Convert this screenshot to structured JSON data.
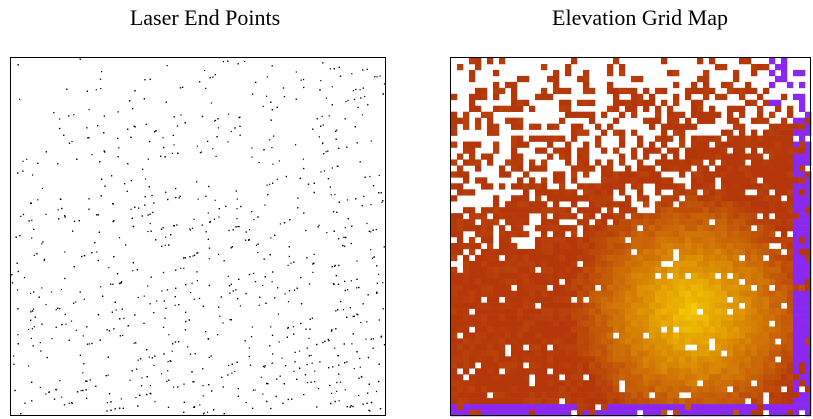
{
  "panels": [
    {
      "title": "Laser End Points"
    },
    {
      "title": "Elevation Grid Map"
    }
  ]
}
